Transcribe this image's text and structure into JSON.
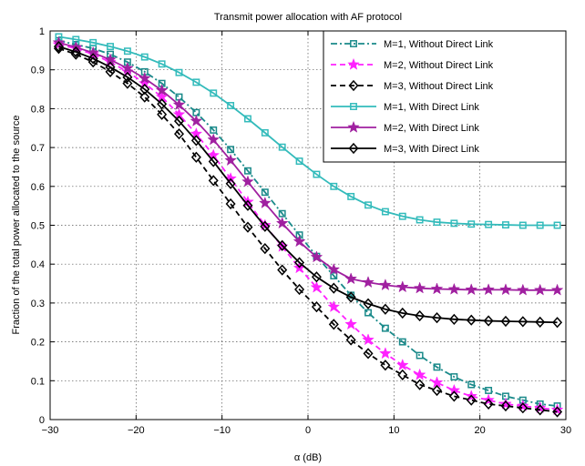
{
  "chart_data": {
    "type": "line",
    "title": "Transmit power allocation with AF protocol",
    "xlabel": "α (dB)",
    "ylabel": "Fraction of the total power allocated to the source",
    "xlim": [
      -30,
      30
    ],
    "ylim": [
      0,
      1
    ],
    "xticks": [
      -30,
      -20,
      -10,
      0,
      10,
      20,
      30
    ],
    "yticks": [
      0,
      0.1,
      0.2,
      0.3,
      0.4,
      0.5,
      0.6,
      0.7,
      0.8,
      0.9,
      1
    ],
    "xtick_labels": [
      "−30",
      "−20",
      "−10",
      "0",
      "10",
      "20",
      "30"
    ],
    "ytick_labels": [
      "0",
      "0.1",
      "0.2",
      "0.3",
      "0.4",
      "0.5",
      "0.6",
      "0.7",
      "0.8",
      "0.9",
      "1"
    ],
    "grid": true,
    "legend_position": "top-right",
    "x": [
      -29,
      -27,
      -25,
      -23,
      -21,
      -19,
      -17,
      -15,
      -13,
      -11,
      -9,
      -7,
      -5,
      -3,
      -1,
      1,
      3,
      5,
      7,
      9,
      11,
      13,
      15,
      17,
      19,
      21,
      23,
      25,
      27,
      29
    ],
    "series": [
      {
        "name": "M=1, Without Direct Link",
        "color": "#1a8a8a",
        "dash": "dashdot",
        "marker": "square",
        "values": [
          0.975,
          0.965,
          0.955,
          0.94,
          0.92,
          0.895,
          0.865,
          0.83,
          0.79,
          0.745,
          0.695,
          0.64,
          0.585,
          0.53,
          0.475,
          0.42,
          0.37,
          0.32,
          0.275,
          0.235,
          0.2,
          0.165,
          0.135,
          0.11,
          0.09,
          0.075,
          0.06,
          0.05,
          0.04,
          0.035
        ]
      },
      {
        "name": "M=2, Without Direct Link",
        "color": "#ff22ff",
        "dash": "dash",
        "marker": "star",
        "values": [
          0.965,
          0.955,
          0.94,
          0.92,
          0.895,
          0.865,
          0.83,
          0.785,
          0.735,
          0.68,
          0.62,
          0.56,
          0.5,
          0.445,
          0.39,
          0.34,
          0.29,
          0.245,
          0.205,
          0.17,
          0.14,
          0.115,
          0.095,
          0.075,
          0.06,
          0.05,
          0.04,
          0.035,
          0.03,
          0.025
        ]
      },
      {
        "name": "M=3, Without Direct Link",
        "color": "#000000",
        "dash": "dash",
        "marker": "diamond",
        "values": [
          0.955,
          0.94,
          0.92,
          0.895,
          0.865,
          0.83,
          0.785,
          0.735,
          0.675,
          0.615,
          0.555,
          0.495,
          0.44,
          0.385,
          0.335,
          0.29,
          0.245,
          0.205,
          0.17,
          0.14,
          0.115,
          0.09,
          0.075,
          0.06,
          0.05,
          0.04,
          0.035,
          0.03,
          0.025,
          0.02
        ]
      },
      {
        "name": "M=1, With Direct Link",
        "color": "#33bbbb",
        "dash": "solid",
        "marker": "square",
        "values": [
          0.985,
          0.978,
          0.97,
          0.96,
          0.948,
          0.933,
          0.915,
          0.893,
          0.868,
          0.84,
          0.808,
          0.774,
          0.738,
          0.701,
          0.665,
          0.631,
          0.6,
          0.574,
          0.552,
          0.535,
          0.523,
          0.514,
          0.508,
          0.505,
          0.503,
          0.502,
          0.501,
          0.5,
          0.5,
          0.5
        ]
      },
      {
        "name": "M=2, With Direct Link",
        "color": "#a020a0",
        "dash": "solid",
        "marker": "star",
        "values": [
          0.97,
          0.958,
          0.944,
          0.926,
          0.904,
          0.878,
          0.847,
          0.81,
          0.768,
          0.72,
          0.667,
          0.612,
          0.557,
          0.505,
          0.458,
          0.418,
          0.386,
          0.362,
          0.353,
          0.346,
          0.341,
          0.338,
          0.336,
          0.335,
          0.334,
          0.334,
          0.334,
          0.333,
          0.333,
          0.333
        ]
      },
      {
        "name": "M=3, With Direct Link",
        "color": "#000000",
        "dash": "solid",
        "marker": "diamond",
        "values": [
          0.96,
          0.946,
          0.929,
          0.907,
          0.881,
          0.85,
          0.812,
          0.768,
          0.718,
          0.664,
          0.607,
          0.551,
          0.497,
          0.448,
          0.404,
          0.367,
          0.338,
          0.315,
          0.298,
          0.284,
          0.274,
          0.267,
          0.262,
          0.258,
          0.256,
          0.254,
          0.253,
          0.252,
          0.251,
          0.25
        ]
      }
    ]
  }
}
